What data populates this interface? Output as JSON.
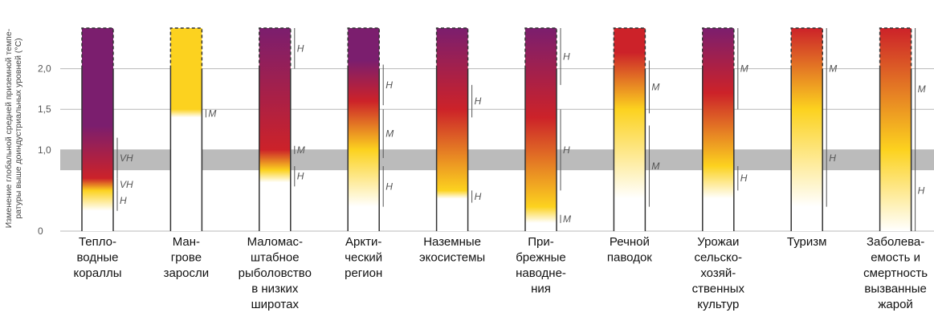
{
  "chart_data": {
    "type": "bar",
    "title": "",
    "ylabel_lines": [
      "Изменение глобальной средней приземной темпе-",
      "ратуры выше доиндустриальных уровней (°С)"
    ],
    "ylim": [
      0,
      2.5
    ],
    "yticks": [
      {
        "value": 0,
        "label": "0"
      },
      {
        "value": 1.0,
        "label": "1,0"
      },
      {
        "value": 1.5,
        "label": "1,5"
      },
      {
        "value": 2.0,
        "label": "2,0"
      }
    ],
    "present_band": [
      0.75,
      1.0
    ],
    "grid": true,
    "colors": {
      "white": "#ffffff",
      "yellow": "#fcd21f",
      "red": "#cc2229",
      "purple": "#7b1e6e",
      "band": "#bbbbbb"
    },
    "categories": [
      {
        "label_lines": [
          "Тепло-",
          "водные",
          "кораллы"
        ],
        "stops": [
          {
            "t": 0.25,
            "color": "white"
          },
          {
            "t": 0.5,
            "color": "yellow"
          },
          {
            "t": 0.65,
            "color": "red"
          },
          {
            "t": 1.3,
            "color": "purple"
          }
        ],
        "transitions": [
          {
            "from": 0.25,
            "to": 0.5,
            "confidence": "H"
          },
          {
            "from": 0.5,
            "to": 0.65,
            "confidence": "VH"
          },
          {
            "from": 0.65,
            "to": 1.15,
            "confidence": "VH"
          }
        ]
      },
      {
        "label_lines": [
          "Ман-",
          "грове",
          "заросли"
        ],
        "stops": [
          {
            "t": 1.4,
            "color": "white"
          },
          {
            "t": 1.5,
            "color": "yellow"
          }
        ],
        "transitions": [
          {
            "from": 1.4,
            "to": 1.5,
            "confidence": "M"
          }
        ]
      },
      {
        "label_lines": [
          "Маломас-",
          "штабное",
          "рыболовство",
          "в низких",
          "широтах"
        ],
        "stops": [
          {
            "t": 0.6,
            "color": "white"
          },
          {
            "t": 0.75,
            "color": "yellow"
          },
          {
            "t": 1.0,
            "color": "red"
          },
          {
            "t": 2.5,
            "color": "purple"
          }
        ],
        "transitions": [
          {
            "from": 0.55,
            "to": 0.8,
            "confidence": "H"
          },
          {
            "from": 0.95,
            "to": 1.05,
            "confidence": "M"
          },
          {
            "from": 2.0,
            "to": 2.5,
            "confidence": "H"
          }
        ]
      },
      {
        "label_lines": [
          "Аркти-",
          "ческий",
          "регион"
        ],
        "stops": [
          {
            "t": 0.3,
            "color": "white"
          },
          {
            "t": 1.0,
            "color": "yellow"
          },
          {
            "t": 1.6,
            "color": "red"
          },
          {
            "t": 2.1,
            "color": "purple"
          }
        ],
        "transitions": [
          {
            "from": 0.3,
            "to": 0.8,
            "confidence": "H"
          },
          {
            "from": 0.9,
            "to": 1.5,
            "confidence": "M"
          },
          {
            "from": 1.55,
            "to": 2.05,
            "confidence": "H"
          }
        ]
      },
      {
        "label_lines": [
          "Наземные",
          "экосистемы"
        ],
        "stops": [
          {
            "t": 0.4,
            "color": "white"
          },
          {
            "t": 0.5,
            "color": "yellow"
          },
          {
            "t": 1.5,
            "color": "red"
          },
          {
            "t": 2.5,
            "color": "purple"
          }
        ],
        "transitions": [
          {
            "from": 0.35,
            "to": 0.5,
            "confidence": "H"
          },
          {
            "from": 1.4,
            "to": 1.8,
            "confidence": "H"
          }
        ]
      },
      {
        "label_lines": [
          "При-",
          "брежные",
          "наводне-",
          "ния"
        ],
        "stops": [
          {
            "t": 0.1,
            "color": "white"
          },
          {
            "t": 0.3,
            "color": "yellow"
          },
          {
            "t": 1.4,
            "color": "red"
          },
          {
            "t": 2.5,
            "color": "purple"
          }
        ],
        "transitions": [
          {
            "from": 0.1,
            "to": 0.2,
            "confidence": "M"
          },
          {
            "from": 0.5,
            "to": 1.5,
            "confidence": "H"
          },
          {
            "from": 1.8,
            "to": 2.5,
            "confidence": "H"
          }
        ]
      },
      {
        "label_lines": [
          "Речной",
          "паводок"
        ],
        "stops": [
          {
            "t": 0.4,
            "color": "white"
          },
          {
            "t": 1.5,
            "color": "yellow"
          },
          {
            "t": 2.2,
            "color": "red"
          }
        ],
        "transitions": [
          {
            "from": 0.3,
            "to": 1.3,
            "confidence": "M"
          },
          {
            "from": 1.45,
            "to": 2.1,
            "confidence": "M"
          }
        ]
      },
      {
        "label_lines": [
          "Урожаи",
          "сельско-",
          "хозяй-",
          "ственных",
          "культур"
        ],
        "stops": [
          {
            "t": 0.4,
            "color": "white"
          },
          {
            "t": 0.8,
            "color": "yellow"
          },
          {
            "t": 1.7,
            "color": "red"
          },
          {
            "t": 2.5,
            "color": "purple"
          }
        ],
        "transitions": [
          {
            "from": 0.5,
            "to": 0.8,
            "confidence": "H"
          },
          {
            "from": 1.5,
            "to": 2.5,
            "confidence": "M"
          }
        ]
      },
      {
        "label_lines": [
          "Туризм"
        ],
        "stops": [
          {
            "t": 0.3,
            "color": "white"
          },
          {
            "t": 1.5,
            "color": "yellow"
          },
          {
            "t": 2.5,
            "color": "red"
          }
        ],
        "transitions": [
          {
            "from": 0.3,
            "to": 1.5,
            "confidence": "H"
          },
          {
            "from": 1.5,
            "to": 2.5,
            "confidence": "M"
          }
        ]
      },
      {
        "label_lines": [
          "Заболева-",
          "емость и",
          "смертность",
          "вызванные",
          "жарой"
        ],
        "stops": [
          {
            "t": 0.0,
            "color": "white"
          },
          {
            "t": 1.0,
            "color": "yellow"
          },
          {
            "t": 2.5,
            "color": "red"
          }
        ],
        "transitions": [
          {
            "from": 0.0,
            "to": 1.0,
            "confidence": "H"
          },
          {
            "from": 1.0,
            "to": 2.5,
            "confidence": "M"
          }
        ]
      }
    ]
  }
}
